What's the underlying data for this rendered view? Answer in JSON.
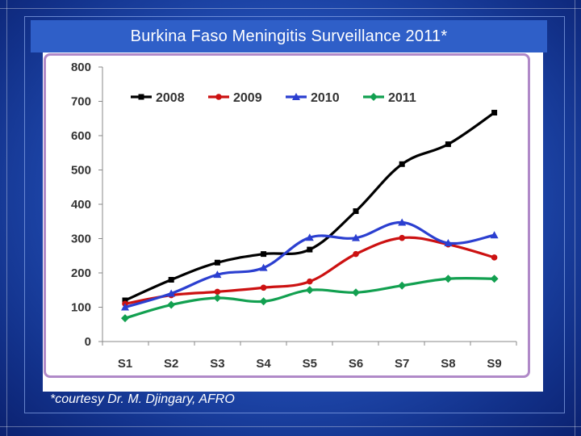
{
  "title": "Burkina Faso Meningitis Surveillance 2011*",
  "footnote": "*courtesy Dr. M. Djingary, AFRO",
  "chart_data": {
    "type": "line",
    "title": "Burkina Faso Meningitis Surveillance 2011*",
    "xlabel": "",
    "ylabel": "",
    "categories": [
      "S1",
      "S2",
      "S3",
      "S4",
      "S5",
      "S6",
      "S7",
      "S8",
      "S9"
    ],
    "ylim": [
      0,
      800
    ],
    "yticks": [
      0,
      100,
      200,
      300,
      400,
      500,
      600,
      700,
      800
    ],
    "grid": false,
    "legend_position": "top",
    "series": [
      {
        "name": "2008",
        "color": "#000000",
        "marker": "square",
        "values": [
          120,
          180,
          230,
          255,
          268,
          380,
          517,
          575,
          667
        ]
      },
      {
        "name": "2009",
        "color": "#cc1111",
        "marker": "circle",
        "values": [
          110,
          135,
          145,
          157,
          175,
          255,
          302,
          283,
          245
        ]
      },
      {
        "name": "2010",
        "color": "#2b3fd0",
        "marker": "triangle",
        "values": [
          100,
          140,
          195,
          215,
          303,
          302,
          347,
          287,
          310
        ]
      },
      {
        "name": "2011",
        "color": "#12a050",
        "marker": "diamond",
        "values": [
          68,
          107,
          127,
          117,
          150,
          143,
          163,
          183,
          183
        ]
      }
    ]
  }
}
